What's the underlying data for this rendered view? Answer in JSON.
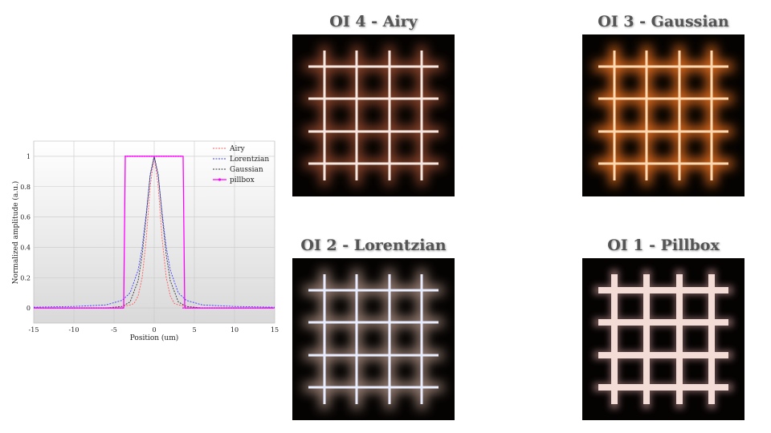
{
  "chart_data": {
    "type": "line",
    "xlabel": "Position (um)",
    "ylabel": "Normalized amplitude (a.u.)",
    "xlim": [
      -15,
      15
    ],
    "ylim": [
      -0.1,
      1.1
    ],
    "x_ticks": [
      -15,
      -10,
      -5,
      0,
      5,
      10,
      15
    ],
    "y_ticks": [
      0,
      0.2,
      0.4,
      0.6,
      0.8,
      1
    ],
    "grid": true,
    "legend_position": "top-right",
    "series": [
      {
        "name": "Airy",
        "color": "#ff5a5a",
        "x": [
          -15,
          -6,
          -4,
          -3,
          -2.5,
          -2,
          -1.5,
          -1,
          -0.5,
          0,
          0.5,
          1,
          1.5,
          2,
          2.5,
          3,
          4,
          6,
          15
        ],
        "y": [
          0,
          0,
          0.01,
          0.02,
          0.03,
          0.08,
          0.2,
          0.45,
          0.8,
          1,
          0.8,
          0.45,
          0.2,
          0.08,
          0.03,
          0.02,
          0.01,
          0,
          0
        ]
      },
      {
        "name": "Lorentzian",
        "color": "#3a3aff",
        "x": [
          -15,
          -10,
          -6,
          -4,
          -3,
          -2,
          -1.5,
          -1,
          -0.5,
          0,
          0.5,
          1,
          1.5,
          2,
          3,
          4,
          6,
          10,
          15
        ],
        "y": [
          0.005,
          0.01,
          0.02,
          0.05,
          0.1,
          0.25,
          0.4,
          0.62,
          0.87,
          1,
          0.87,
          0.62,
          0.4,
          0.25,
          0.1,
          0.05,
          0.02,
          0.01,
          0.005
        ]
      },
      {
        "name": "Gaussian",
        "color": "#333333",
        "x": [
          -15,
          -6,
          -4,
          -3,
          -2,
          -1.5,
          -1,
          -0.5,
          0,
          0.5,
          1,
          1.5,
          2,
          3,
          4,
          6,
          15
        ],
        "y": [
          0,
          0,
          0.01,
          0.04,
          0.18,
          0.35,
          0.6,
          0.88,
          1,
          0.88,
          0.6,
          0.35,
          0.18,
          0.04,
          0.01,
          0,
          0
        ]
      },
      {
        "name": "pillbox",
        "color": "#ff00ff",
        "x": [
          -15,
          -3.8,
          -3.6,
          3.6,
          3.8,
          15
        ],
        "y": [
          0,
          0,
          1,
          1,
          0,
          0
        ]
      }
    ]
  },
  "panels": [
    {
      "title": "OI 4 - Airy",
      "line_color": "#f5e6e0",
      "glow_color": "#a05030",
      "bar_width": 3
    },
    {
      "title": "OI 3 - Gaussian",
      "line_color": "#ffd8b0",
      "glow_color": "#ff7a20",
      "bar_width": 3
    },
    {
      "title": "OI 2 - Lorentzian",
      "line_color": "#e8ecff",
      "glow_color": "#b49688",
      "bar_width": 3
    },
    {
      "title": "OI 1 - Pillbox",
      "line_color": "#f3dcd6",
      "glow_color": "#806060",
      "bar_width": 8
    }
  ]
}
